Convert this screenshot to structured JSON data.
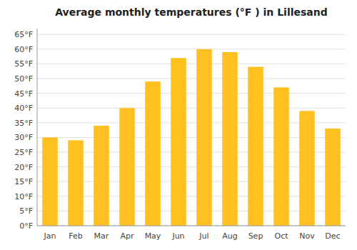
{
  "chart_data": {
    "type": "bar",
    "title": "Average monthly temperatures (°F ) in Lillesand",
    "categories": [
      "Jan",
      "Feb",
      "Mar",
      "Apr",
      "May",
      "Jun",
      "Jul",
      "Aug",
      "Sep",
      "Oct",
      "Nov",
      "Dec"
    ],
    "values": [
      30,
      29,
      34,
      40,
      49,
      57,
      60,
      59,
      54,
      47,
      39,
      33
    ],
    "color": "#FFC020",
    "ylim": [
      0,
      67
    ],
    "yticks": [
      {
        "value": 0,
        "label": "0°F"
      },
      {
        "value": 5,
        "label": "5°F"
      },
      {
        "value": 10,
        "label": "10°F"
      },
      {
        "value": 15,
        "label": "15°F"
      },
      {
        "value": 20,
        "label": "20°F"
      },
      {
        "value": 25,
        "label": "25°F"
      },
      {
        "value": 30,
        "label": "30°F"
      },
      {
        "value": 35,
        "label": "35°F"
      },
      {
        "value": 40,
        "label": "40°F"
      },
      {
        "value": 45,
        "label": "45°F"
      },
      {
        "value": 50,
        "label": "50°F"
      },
      {
        "value": 55,
        "label": "55°F"
      },
      {
        "value": 60,
        "label": "60°F"
      },
      {
        "value": 65,
        "label": "65°F"
      }
    ],
    "grid": true
  }
}
